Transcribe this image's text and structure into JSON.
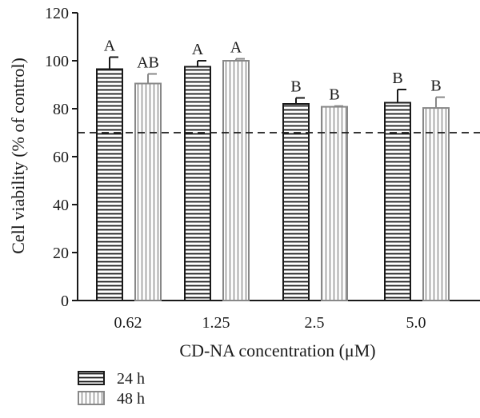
{
  "chart_data": {
    "type": "bar",
    "categories": [
      "0.62",
      "1.25",
      "2.5",
      "5.0"
    ],
    "series": [
      {
        "name": "24 h",
        "values": [
          96.5,
          97.5,
          82,
          82.5
        ],
        "errors": [
          5,
          2.5,
          2.5,
          5.5
        ],
        "labels": [
          "A",
          "A",
          "B",
          "B"
        ],
        "pattern": "horizontal-stripes",
        "stroke_color": "#1a1a1a"
      },
      {
        "name": "48 h",
        "values": [
          90.5,
          100,
          80.8,
          80.3
        ],
        "errors": [
          4,
          0.8,
          0.3,
          4.5
        ],
        "labels": [
          "AB",
          "A",
          "B",
          "B"
        ],
        "pattern": "vertical-stripes",
        "stroke_color": "#888888"
      }
    ],
    "title": "",
    "xlabel": "CD-NA concentration (μM)",
    "ylabel": "Cell viability (% of control)",
    "ylim": [
      0,
      120
    ],
    "yticks": [
      "0",
      "20",
      "40",
      "60",
      "80",
      "100",
      "120"
    ],
    "reference_line": {
      "value": 70,
      "style": "dashed"
    },
    "grid": false,
    "legend": "bottom-left"
  }
}
